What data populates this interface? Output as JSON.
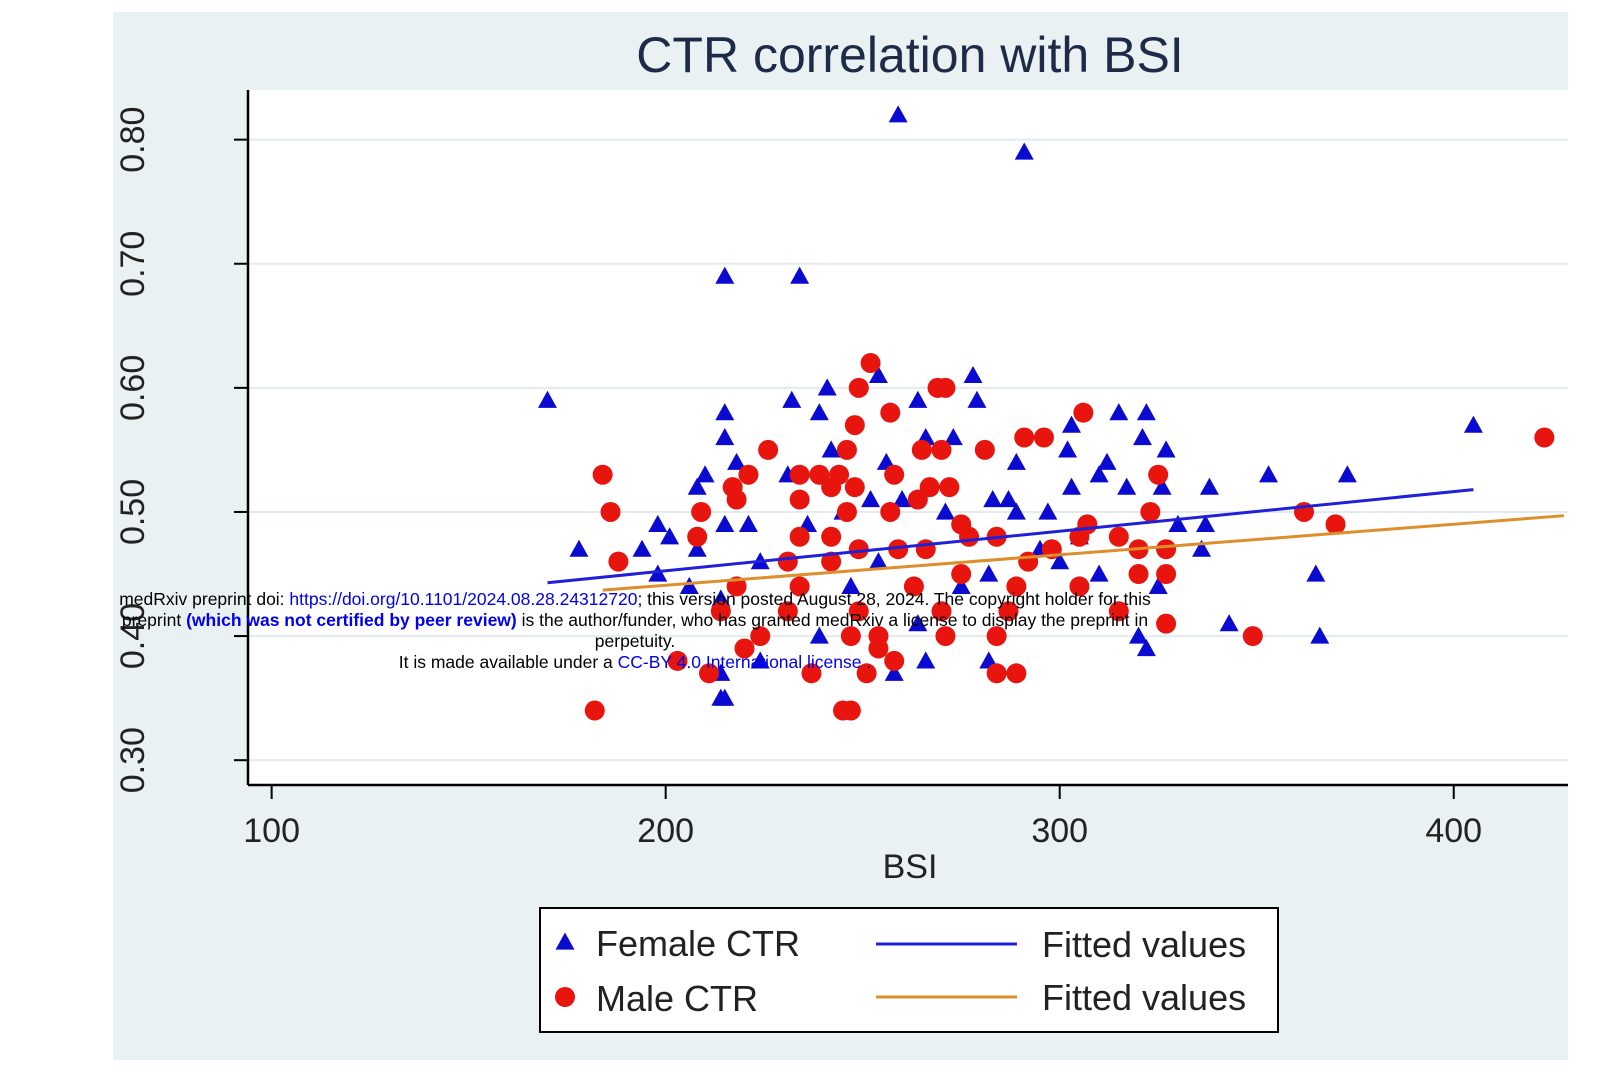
{
  "chart_data": {
    "type": "scatter",
    "title": "CTR correlation with BSI",
    "x_label": "BSI",
    "xlim": [
      94,
      429
    ],
    "ylim": [
      0.28,
      0.84
    ],
    "xticks": [
      100,
      200,
      300,
      400
    ],
    "yticks": [
      {
        "value": 0.3,
        "label": "0.30"
      },
      {
        "value": 0.4,
        "label": "0.40"
      },
      {
        "value": 0.5,
        "label": "0.50"
      },
      {
        "value": 0.6,
        "label": "0.60"
      },
      {
        "value": 0.7,
        "label": "0.70"
      },
      {
        "value": 0.8,
        "label": "0.80"
      }
    ],
    "grid": true,
    "series": [
      {
        "name": "Female CTR",
        "type": "scatter",
        "marker": "triangle",
        "color": "#0a0ad0",
        "x": [
          259,
          291,
          215,
          234,
          170,
          278,
          254,
          241,
          215,
          232,
          239,
          264,
          279,
          315,
          322,
          405,
          303,
          215,
          266,
          273,
          321,
          327,
          302,
          218,
          242,
          289,
          312,
          353,
          373,
          338,
          208,
          210,
          231,
          256,
          303,
          310,
          326,
          317,
          283,
          287,
          297,
          289,
          260,
          271,
          252,
          245,
          236,
          221,
          215,
          198,
          201,
          178,
          194,
          208,
          224,
          330,
          337,
          336,
          305,
          295,
          310,
          365,
          198,
          206,
          214,
          325,
          343,
          366,
          320,
          322,
          266,
          282,
          214,
          258,
          214,
          215,
          224,
          239,
          275,
          282,
          254,
          247,
          264,
          300
        ],
        "values": [
          0.82,
          0.79,
          0.69,
          0.69,
          0.59,
          0.61,
          0.61,
          0.6,
          0.58,
          0.59,
          0.58,
          0.59,
          0.59,
          0.58,
          0.58,
          0.57,
          0.57,
          0.56,
          0.56,
          0.56,
          0.56,
          0.55,
          0.55,
          0.54,
          0.55,
          0.54,
          0.54,
          0.53,
          0.53,
          0.52,
          0.52,
          0.53,
          0.53,
          0.54,
          0.52,
          0.53,
          0.52,
          0.52,
          0.51,
          0.51,
          0.5,
          0.5,
          0.51,
          0.5,
          0.51,
          0.5,
          0.49,
          0.49,
          0.49,
          0.49,
          0.48,
          0.47,
          0.47,
          0.47,
          0.46,
          0.49,
          0.49,
          0.47,
          0.48,
          0.47,
          0.45,
          0.45,
          0.45,
          0.44,
          0.43,
          0.44,
          0.41,
          0.4,
          0.4,
          0.39,
          0.38,
          0.38,
          0.37,
          0.37,
          0.35,
          0.35,
          0.38,
          0.4,
          0.44,
          0.45,
          0.46,
          0.44,
          0.41,
          0.46
        ]
      },
      {
        "name": "Male CTR",
        "type": "scatter",
        "marker": "circle",
        "color": "#e8140e",
        "x": [
          252,
          249,
          269,
          271,
          257,
          306,
          291,
          296,
          248,
          423,
          226,
          265,
          270,
          281,
          246,
          184,
          221,
          234,
          239,
          244,
          258,
          325,
          217,
          242,
          248,
          267,
          272,
          186,
          209,
          218,
          234,
          246,
          257,
          264,
          323,
          362,
          370,
          307,
          275,
          188,
          208,
          234,
          242,
          277,
          284,
          315,
          305,
          320,
          327,
          249,
          259,
          266,
          298,
          292,
          231,
          242,
          275,
          320,
          327,
          263,
          218,
          234,
          305,
          289,
          214,
          231,
          249,
          270,
          287,
          315,
          327,
          224,
          247,
          254,
          271,
          284,
          349,
          220,
          254,
          258,
          203,
          211,
          237,
          251,
          284,
          289,
          182,
          245,
          247
        ],
        "values": [
          0.62,
          0.6,
          0.6,
          0.6,
          0.58,
          0.58,
          0.56,
          0.56,
          0.57,
          0.56,
          0.55,
          0.55,
          0.55,
          0.55,
          0.55,
          0.53,
          0.53,
          0.53,
          0.53,
          0.53,
          0.53,
          0.53,
          0.52,
          0.52,
          0.52,
          0.52,
          0.52,
          0.5,
          0.5,
          0.51,
          0.51,
          0.5,
          0.5,
          0.51,
          0.5,
          0.5,
          0.49,
          0.49,
          0.49,
          0.46,
          0.48,
          0.48,
          0.48,
          0.48,
          0.48,
          0.48,
          0.48,
          0.47,
          0.47,
          0.47,
          0.47,
          0.47,
          0.47,
          0.46,
          0.46,
          0.46,
          0.45,
          0.45,
          0.45,
          0.44,
          0.44,
          0.44,
          0.44,
          0.44,
          0.42,
          0.42,
          0.42,
          0.42,
          0.42,
          0.42,
          0.41,
          0.4,
          0.4,
          0.4,
          0.4,
          0.4,
          0.4,
          0.39,
          0.39,
          0.38,
          0.38,
          0.37,
          0.37,
          0.37,
          0.37,
          0.37,
          0.34,
          0.34,
          0.34
        ]
      },
      {
        "name": "Fitted values",
        "type": "line",
        "color": "#2020d8",
        "x": [
          170,
          405
        ],
        "values": [
          0.443,
          0.518
        ]
      },
      {
        "name": "Fitted values",
        "type": "line",
        "color": "#dc8f2c",
        "x": [
          184,
          428
        ],
        "values": [
          0.437,
          0.497
        ]
      }
    ]
  },
  "watermark": {
    "line1": [
      "medRxiv preprint doi: ",
      "https://doi.org/10.1101/2024.08.28.24312720",
      "; this version posted August 28, 2024. The copyright holder for this"
    ],
    "line2": [
      "preprint ",
      "(which was not certified by peer review)",
      " is the author/funder, who has granted medRxiv a license to display the preprint in"
    ],
    "line3": "perpetuity.",
    "line4": [
      "It is made available under a ",
      "CC-BY 4.0 International license",
      " ."
    ]
  }
}
